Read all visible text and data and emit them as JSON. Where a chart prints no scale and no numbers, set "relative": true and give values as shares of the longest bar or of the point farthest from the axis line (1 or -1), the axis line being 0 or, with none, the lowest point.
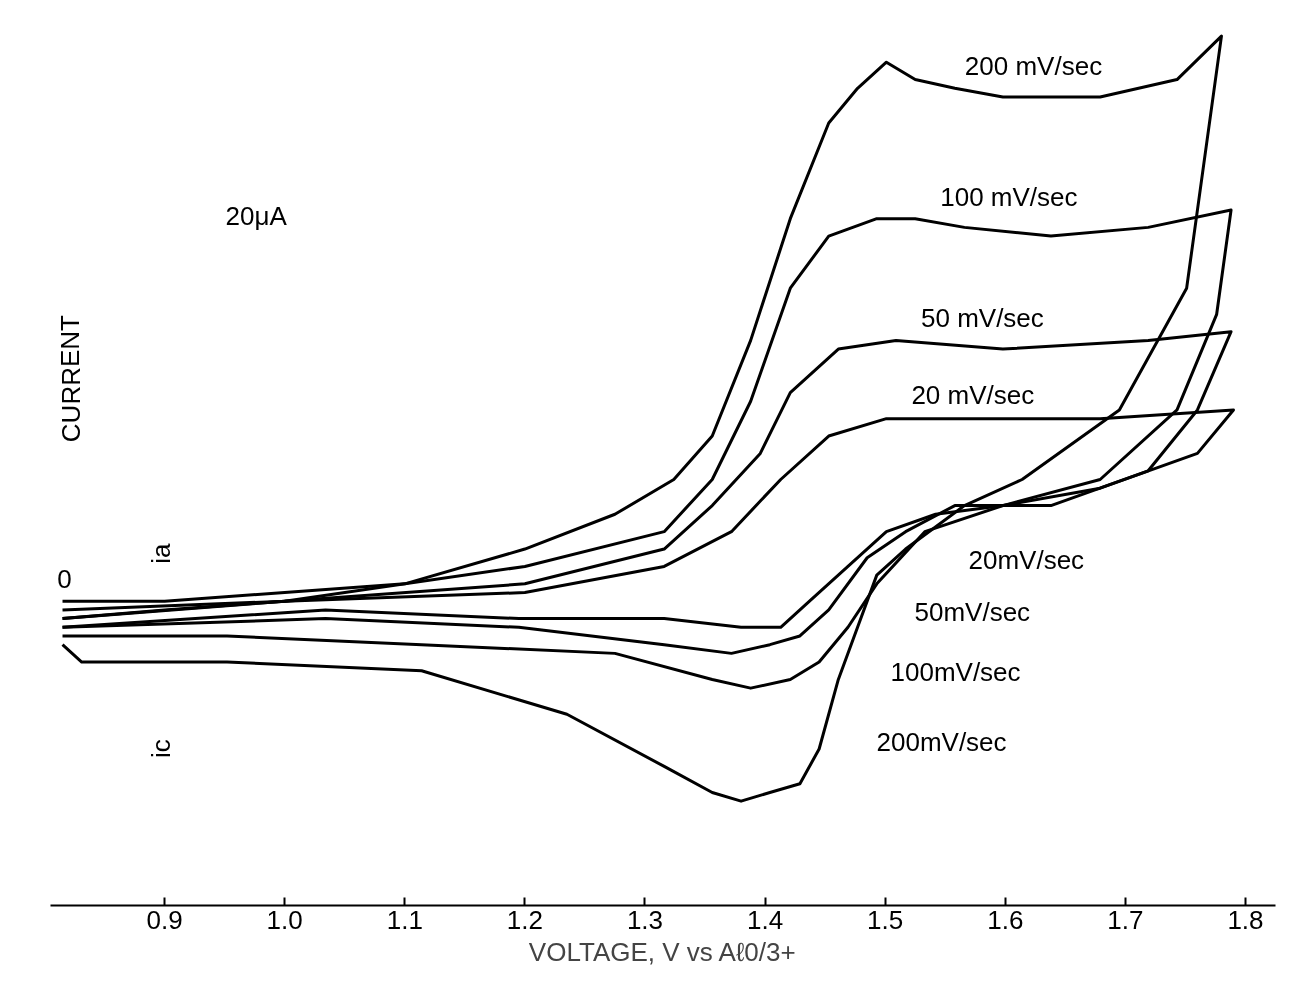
{
  "chart_data": {
    "type": "line",
    "relative": true,
    "xlabel": "VOLTAGE, V vs Aℓ0/3+",
    "xlim": [
      0.805,
      1.825
    ],
    "xticks": [
      {
        "value": 0.9,
        "label": "0.9"
      },
      {
        "value": 1.0,
        "label": "1.0"
      },
      {
        "value": 1.1,
        "label": "1.1"
      },
      {
        "value": 1.2,
        "label": "1.2"
      },
      {
        "value": 1.3,
        "label": "1.3"
      },
      {
        "value": 1.4,
        "label": "1.4"
      },
      {
        "value": 1.5,
        "label": "1.5"
      },
      {
        "value": 1.6,
        "label": "1.6"
      },
      {
        "value": 1.7,
        "label": "1.7"
      },
      {
        "value": 1.8,
        "label": "1.8"
      }
    ],
    "grid": false,
    "marker": "none",
    "line_style": "solid",
    "series": [
      {
        "name": "20 mV/sec",
        "color": "#000000",
        "x": [
          0.815,
          0.9,
          1.0,
          1.2,
          1.316,
          1.372,
          1.413,
          1.453,
          1.501,
          1.598,
          1.679,
          1.79,
          1.76,
          1.679,
          1.598,
          1.542,
          1.501,
          1.469,
          1.437,
          1.413,
          1.38,
          1.316,
          1.195,
          1.034,
          0.815
        ],
        "values": [
          0.33,
          0.34,
          0.35,
          0.36,
          0.39,
          0.43,
          0.49,
          0.54,
          0.56,
          0.56,
          0.56,
          0.57,
          0.52,
          0.48,
          0.46,
          0.45,
          0.43,
          0.39,
          0.35,
          0.32,
          0.32,
          0.33,
          0.33,
          0.34,
          0.32
        ]
      },
      {
        "name": "50 mV/sec",
        "color": "#000000",
        "x": [
          0.815,
          1.0,
          1.2,
          1.316,
          1.356,
          1.396,
          1.421,
          1.461,
          1.509,
          1.598,
          1.719,
          1.788,
          1.76,
          1.719,
          1.638,
          1.558,
          1.517,
          1.485,
          1.453,
          1.429,
          1.404,
          1.372,
          1.316,
          1.195,
          1.034,
          0.815
        ],
        "values": [
          0.33,
          0.35,
          0.37,
          0.41,
          0.46,
          0.52,
          0.59,
          0.64,
          0.65,
          0.64,
          0.65,
          0.66,
          0.57,
          0.5,
          0.46,
          0.46,
          0.43,
          0.4,
          0.34,
          0.31,
          0.3,
          0.29,
          0.3,
          0.32,
          0.33,
          0.32
        ]
      },
      {
        "name": "100 mV/sec",
        "color": "#000000",
        "x": [
          0.815,
          1.0,
          1.2,
          1.316,
          1.356,
          1.388,
          1.421,
          1.453,
          1.493,
          1.525,
          1.566,
          1.638,
          1.719,
          1.788,
          1.776,
          1.743,
          1.679,
          1.598,
          1.533,
          1.493,
          1.469,
          1.445,
          1.421,
          1.388,
          1.356,
          1.275,
          1.114,
          0.952,
          0.815
        ],
        "values": [
          0.34,
          0.35,
          0.39,
          0.43,
          0.49,
          0.58,
          0.71,
          0.77,
          0.79,
          0.79,
          0.78,
          0.77,
          0.78,
          0.8,
          0.68,
          0.57,
          0.49,
          0.46,
          0.43,
          0.37,
          0.32,
          0.28,
          0.26,
          0.25,
          0.26,
          0.29,
          0.3,
          0.31,
          0.31
        ]
      },
      {
        "name": "200 mV/sec",
        "color": "#000000",
        "x": [
          0.815,
          0.9,
          1.0,
          1.1,
          1.2,
          1.275,
          1.324,
          1.356,
          1.388,
          1.421,
          1.453,
          1.477,
          1.501,
          1.525,
          1.558,
          1.598,
          1.679,
          1.743,
          1.78,
          1.751,
          1.695,
          1.614,
          1.566,
          1.517,
          1.493,
          1.477,
          1.461,
          1.445,
          1.429,
          1.404,
          1.38,
          1.356,
          1.316,
          1.235,
          1.114,
          0.952,
          0.831,
          0.815
        ],
        "values": [
          0.35,
          0.35,
          0.36,
          0.37,
          0.41,
          0.45,
          0.49,
          0.54,
          0.65,
          0.79,
          0.9,
          0.94,
          0.97,
          0.95,
          0.94,
          0.93,
          0.93,
          0.95,
          1.0,
          0.71,
          0.57,
          0.49,
          0.46,
          0.41,
          0.38,
          0.32,
          0.26,
          0.18,
          0.14,
          0.13,
          0.12,
          0.13,
          0.16,
          0.22,
          0.27,
          0.28,
          0.28,
          0.3
        ]
      }
    ],
    "annotations": [
      "0",
      "CURRENT",
      "ia",
      "ic",
      "20μA",
      "20mV/sec",
      "50mV/sec",
      "100mV/sec",
      "200mV/sec"
    ]
  }
}
